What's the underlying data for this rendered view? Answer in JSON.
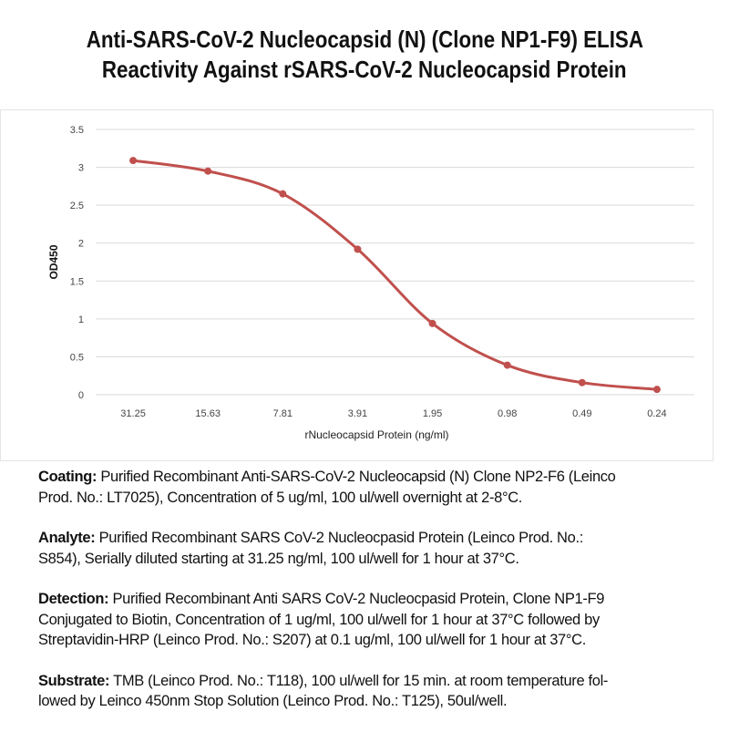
{
  "chart_data": {
    "type": "line",
    "title": [
      "Anti-SARS-CoV-2 Nucleocapsid (N) (Clone NP1-F9) ELISA",
      "Reactivity Against rSARS-CoV-2 Nucleocapsid Protein"
    ],
    "xlabel": "rNucleocapsid Protein (ng/ml)",
    "ylabel": "OD450",
    "categories": [
      "31.25",
      "15.63",
      "7.81",
      "3.91",
      "1.95",
      "0.98",
      "0.49",
      "0.24"
    ],
    "series": [
      {
        "name": "OD450",
        "values": [
          3.09,
          2.95,
          2.65,
          1.92,
          0.94,
          0.39,
          0.16,
          0.07
        ]
      }
    ],
    "ylim": [
      0,
      3.5
    ],
    "yticks": [
      "0",
      "0.5",
      "1",
      "1.5",
      "2",
      "2.5",
      "3",
      "3.5"
    ],
    "grid": true,
    "color": "#c0504d"
  },
  "notes": [
    {
      "label": "Coating:",
      "lines": [
        " Purified Recombinant Anti-SARS-CoV-2 Nucleocapsid (N) Clone NP2-F6 (Leinco",
        "Prod. No.: LT7025), Concentration of 5 ug/ml, 100 ul/well overnight at 2-8°C."
      ]
    },
    {
      "label": "Analyte:",
      "lines": [
        " Purified Recombinant SARS CoV-2 Nucleocpasid Protein (Leinco Prod. No.:",
        "S854), Serially diluted starting at 31.25 ng/ml, 100 ul/well for 1 hour at 37°C."
      ]
    },
    {
      "label": "Detection:",
      "lines": [
        " Purified Recombinant Anti SARS CoV-2 Nucleocpasid Protein, Clone NP1-F9",
        "Conjugated to Biotin, Concentration of 1 ug/ml, 100 ul/well for 1 hour at 37°C followed by",
        "Streptavidin-HRP (Leinco Prod. No.: S207) at 0.1 ug/ml, 100 ul/well for 1 hour at 37°C."
      ]
    },
    {
      "label": "Substrate:",
      "lines": [
        " TMB (Leinco Prod. No.: T118), 100 ul/well for 15 min. at room temperature fol-",
        "lowed by Leinco 450nm Stop Solution (Leinco Prod. No.: T125), 50ul/well."
      ]
    }
  ]
}
